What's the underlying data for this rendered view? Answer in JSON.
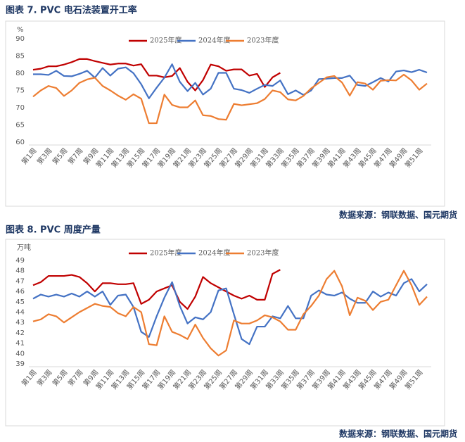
{
  "chart_data": [
    {
      "type": "line",
      "title": "图表 7.  PVC 电石法装置开工率",
      "y_label": "%",
      "source": "数据来源：钢联数据、国元期货",
      "categories": [
        "第1周",
        null,
        "第3周",
        null,
        "第5周",
        null,
        "第7周",
        null,
        "第9周",
        null,
        "第11周",
        null,
        "第13周",
        null,
        "第15周",
        null,
        "第17周",
        null,
        "第19周",
        null,
        "第21周",
        null,
        "第23周",
        null,
        "第25周",
        null,
        "第27周",
        null,
        "第29周",
        null,
        "第31周",
        null,
        "第33周",
        null,
        "第35周",
        null,
        "第37周",
        null,
        "第39周",
        null,
        "第41周",
        null,
        "第43周",
        null,
        "第45周",
        null,
        "第47周",
        null,
        "第49周",
        null,
        "第51周",
        null
      ],
      "ylim": [
        60,
        90
      ],
      "yticks": [
        60,
        65,
        70,
        75,
        80,
        85,
        90
      ],
      "legend": "top",
      "series": [
        {
          "name": "2025年度",
          "color": "#c00000",
          "values": [
            81,
            81.3,
            82,
            82,
            82.5,
            83.2,
            84.1,
            84.1,
            83.5,
            83,
            82.5,
            82.8,
            82.8,
            82.2,
            82.6,
            79.3,
            79.3,
            78.8,
            79.2,
            81.5,
            77.5,
            75,
            78,
            82.5,
            82,
            80.7,
            81.1,
            81.1,
            79.3,
            79.8,
            76,
            78.8,
            80.1,
            null,
            null,
            null,
            null,
            null,
            null,
            null,
            null,
            null,
            null,
            null,
            null,
            null,
            null,
            null,
            null,
            null,
            null,
            null
          ]
        },
        {
          "name": "2024年度",
          "color": "#4472c4",
          "values": [
            79.7,
            79.7,
            79.5,
            80.7,
            79.2,
            79.1,
            79.8,
            80.7,
            78.7,
            81.5,
            79.3,
            81.3,
            81.7,
            80,
            76.8,
            72.7,
            75.8,
            78.7,
            82.6,
            77.5,
            74.8,
            77.2,
            73.8,
            75.5,
            80.1,
            80.1,
            75.5,
            75.1,
            74.3,
            75.5,
            76.6,
            76.3,
            77.9,
            73.9,
            75,
            73.7,
            75,
            78.3,
            78.4,
            78.6,
            78.6,
            79.3,
            76.6,
            76.3,
            77.4,
            78.6,
            77.6,
            80.5,
            80.8,
            80.3,
            81,
            80.2
          ]
        },
        {
          "name": "2023年度",
          "color": "#ed7d31",
          "values": [
            73.2,
            75,
            76.3,
            75.7,
            73.4,
            75,
            77.2,
            78.2,
            78.7,
            76.3,
            75,
            73.5,
            72.3,
            73.9,
            72.6,
            65.5,
            65.5,
            73.8,
            70.8,
            70.1,
            70.1,
            72.1,
            67.8,
            67.6,
            66.7,
            66.5,
            71.1,
            70.7,
            71,
            71.3,
            72.5,
            75,
            74.5,
            72.4,
            72.1,
            73.4,
            75.6,
            77.2,
            78.8,
            79.2,
            77.3,
            73.5,
            77.4,
            77,
            75.2,
            77.8,
            78,
            77.9,
            79.6,
            77.9,
            75.2,
            77
          ]
        }
      ]
    },
    {
      "type": "line",
      "title": "图表 8.  PVC 周度产量",
      "y_label": "万吨",
      "source": "数据来源：钢联数据、国元期货",
      "categories": [
        "第1周",
        null,
        "第3周",
        null,
        "第5周",
        null,
        "第7周",
        null,
        "第9周",
        null,
        "第11周",
        null,
        "第13周",
        null,
        "第15周",
        null,
        "第17周",
        null,
        "第19周",
        null,
        "第21周",
        null,
        "第23周",
        null,
        "第25周",
        null,
        "第27周",
        null,
        "第29周",
        null,
        "第31周",
        null,
        "第33周",
        null,
        "第35周",
        null,
        "第37周",
        null,
        "第39周",
        null,
        "第41周",
        null,
        "第43周",
        null,
        "第45周",
        null,
        "第47周",
        null,
        "第49周",
        null,
        "第51周",
        null
      ],
      "ylim": [
        39,
        49
      ],
      "yticks": [
        39,
        40,
        41,
        42,
        43,
        44,
        45,
        46,
        47,
        48,
        49
      ],
      "legend": "top",
      "series": [
        {
          "name": "2025年度",
          "color": "#c00000",
          "values": [
            46.6,
            46.9,
            47.5,
            47.5,
            47.5,
            47.6,
            47.4,
            46.8,
            46,
            46.8,
            46.8,
            46.7,
            46.7,
            46.8,
            44.8,
            45.2,
            46,
            46.3,
            46.6,
            45,
            44.3,
            45.5,
            47.4,
            46.8,
            46.4,
            46,
            45.6,
            45.3,
            45.6,
            45.2,
            45.2,
            47.7,
            48.1,
            null,
            null,
            null,
            null,
            null,
            null,
            null,
            null,
            null,
            null,
            null,
            null,
            null,
            null,
            null,
            null,
            null,
            null,
            null
          ]
        },
        {
          "name": "2024年度",
          "color": "#4472c4",
          "values": [
            45.3,
            45.7,
            45.5,
            45.7,
            45.5,
            45.8,
            45.5,
            46,
            45.5,
            46,
            44.7,
            45.6,
            45.7,
            44.5,
            42.1,
            41.6,
            43.6,
            45.4,
            46.9,
            44.6,
            42.9,
            43.5,
            43.3,
            44,
            46.1,
            46.3,
            43.8,
            41.4,
            40.9,
            42.6,
            42.6,
            43.6,
            43.4,
            44.6,
            43.4,
            43.4,
            45.6,
            46.1,
            45.7,
            45.6,
            45.9,
            45.3,
            44.9,
            44.9,
            46,
            45.5,
            45.9,
            45.6,
            46.8,
            47.2,
            46,
            46.7
          ]
        },
        {
          "name": "2023年度",
          "color": "#ed7d31",
          "values": [
            43.1,
            43.3,
            43.8,
            43.6,
            43,
            43.5,
            44,
            44.4,
            44.8,
            44.6,
            44.5,
            43.9,
            43.6,
            44.5,
            44,
            40.9,
            40.8,
            43.6,
            42.1,
            41.8,
            41.4,
            42.8,
            41.5,
            40.5,
            39.8,
            40.3,
            43.2,
            42.9,
            42.9,
            43.2,
            43.7,
            43.5,
            43.1,
            42.3,
            42.3,
            43.8,
            44.6,
            45.6,
            47.2,
            48,
            46.5,
            43.7,
            45.4,
            45.1,
            44.2,
            45,
            45.2,
            46.6,
            48,
            46.6,
            44.7,
            45.5
          ]
        }
      ]
    }
  ]
}
